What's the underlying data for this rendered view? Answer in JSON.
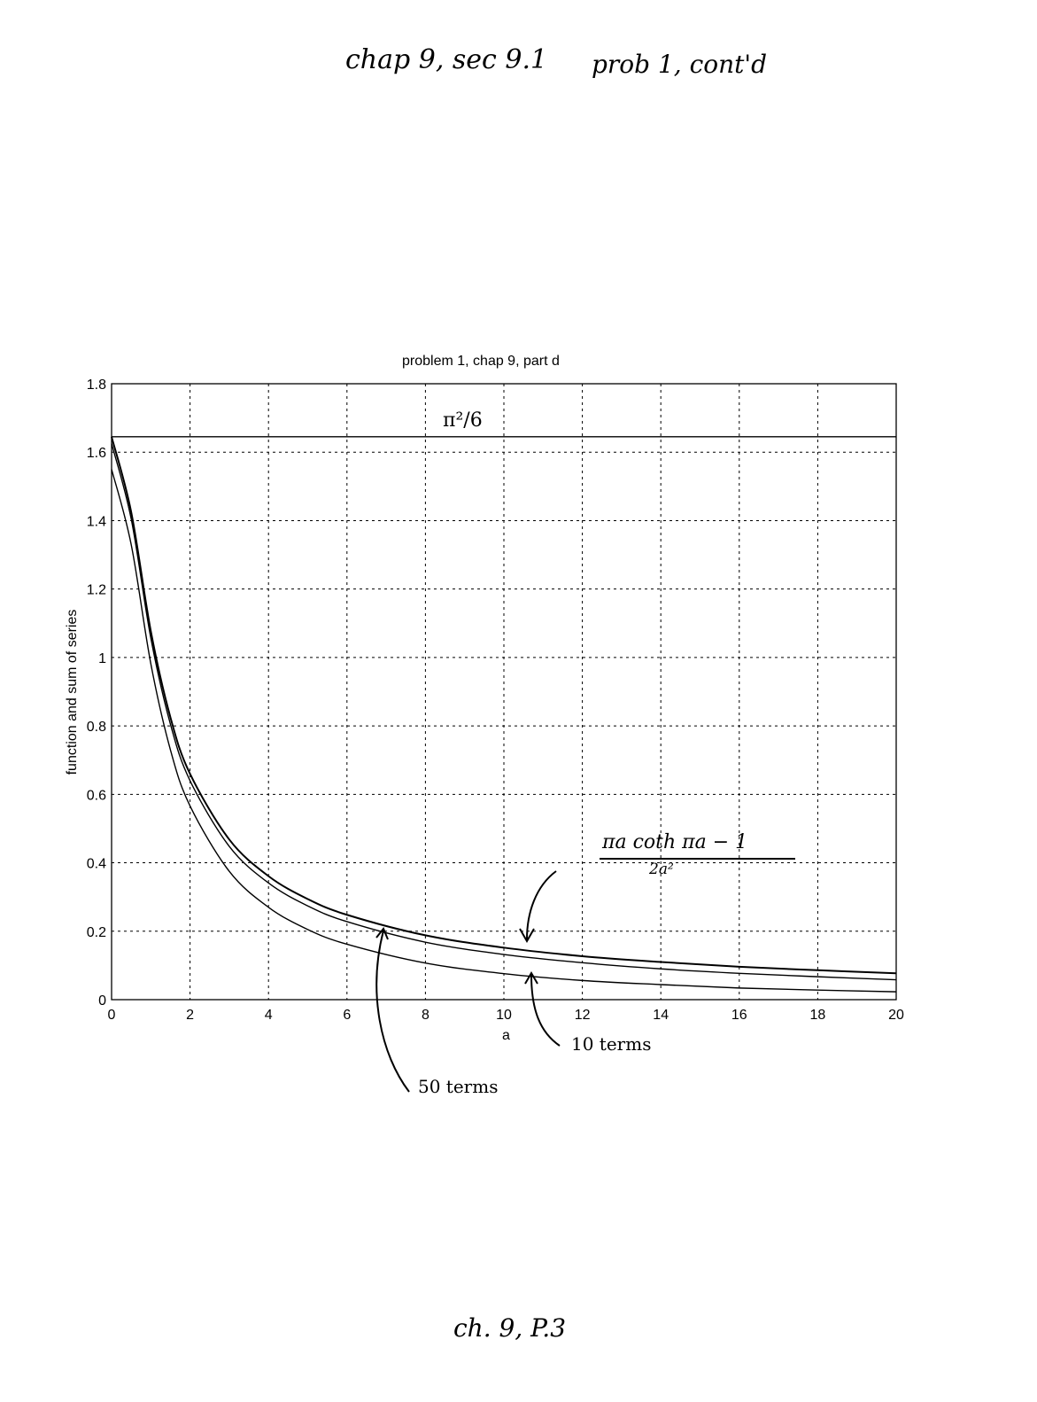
{
  "header_note": {
    "left": "chap 9, sec 9.1",
    "right": "prob 1, cont'd"
  },
  "footer_note": "ch. 9, P.3",
  "annotations": {
    "limit_label": "π²/6",
    "function_numerator": "πa  coth πa − 1",
    "function_denominator": "2a²",
    "ten_terms": "10 terms",
    "fifty_terms": "50 terms"
  },
  "chart_data": {
    "type": "line",
    "title": "problem 1, chap 9, part d",
    "xlabel": "a",
    "ylabel": "function and sum of series",
    "xlim": [
      0,
      20
    ],
    "ylim": [
      0,
      1.8
    ],
    "xticks": [
      "0",
      "2",
      "4",
      "6",
      "8",
      "10",
      "12",
      "14",
      "16",
      "18",
      "20"
    ],
    "yticks": [
      "0",
      "0.2",
      "0.4",
      "0.6",
      "0.8",
      "1",
      "1.2",
      "1.4",
      "1.6",
      "1.8"
    ],
    "grid": true,
    "x": [
      0,
      0.5,
      1,
      1.5,
      2,
      3,
      4,
      5,
      6,
      8,
      10,
      12,
      14,
      16,
      18,
      20
    ],
    "series": [
      {
        "name": "π²/6",
        "values": [
          1.645,
          1.645,
          1.645,
          1.645,
          1.645,
          1.645,
          1.645,
          1.645,
          1.645,
          1.645,
          1.645,
          1.645,
          1.645,
          1.645,
          1.645,
          1.645
        ]
      },
      {
        "name": "(πa coth πa − 1)/(2a²)",
        "values": [
          1.645,
          1.425,
          1.077,
          0.825,
          0.66,
          0.468,
          0.361,
          0.294,
          0.248,
          0.188,
          0.152,
          0.127,
          0.11,
          0.096,
          0.086,
          0.077
        ]
      },
      {
        "name": "50 terms",
        "values": [
          1.625,
          1.405,
          1.057,
          0.805,
          0.64,
          0.448,
          0.341,
          0.274,
          0.228,
          0.168,
          0.132,
          0.108,
          0.09,
          0.077,
          0.067,
          0.058
        ]
      },
      {
        "name": "10 terms",
        "values": [
          1.55,
          1.33,
          0.982,
          0.73,
          0.566,
          0.375,
          0.27,
          0.205,
          0.162,
          0.107,
          0.076,
          0.056,
          0.044,
          0.034,
          0.028,
          0.023
        ]
      }
    ]
  }
}
